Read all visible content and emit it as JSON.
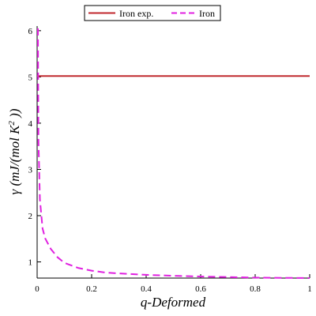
{
  "chart_data": {
    "type": "line",
    "xlabel": "q-Deformed",
    "ylabel": {
      "prefix": "γ (mJ/(mol K",
      "superscript": "2",
      "suffix": " ))"
    },
    "xlim": [
      0,
      1
    ],
    "ylim": [
      0.65,
      6.1
    ],
    "x_ticks": [
      0,
      0.2,
      0.4,
      0.6,
      0.8,
      1
    ],
    "x_tick_labels": [
      "0",
      "0.2",
      "0.4",
      "0.6",
      "0.8",
      "1"
    ],
    "y_ticks": [
      1,
      2,
      3,
      4,
      5,
      6
    ],
    "y_tick_labels": [
      "1",
      "2",
      "3",
      "4",
      "5",
      "6"
    ],
    "grid": false,
    "legend_position": "top-center",
    "series": [
      {
        "name": "Iron exp.",
        "color": "#c0282d",
        "dash": "solid",
        "x": [
          0,
          1
        ],
        "y": [
          5.02,
          5.02
        ]
      },
      {
        "name": "Iron",
        "color": "#e020e0",
        "dash": "dashed",
        "x": [
          0.003,
          0.005,
          0.01,
          0.02,
          0.03,
          0.05,
          0.075,
          0.1,
          0.15,
          0.2,
          0.25,
          0.3,
          0.4,
          0.5,
          0.6,
          0.7,
          0.8,
          0.9,
          1.0
        ],
        "y": [
          6.05,
          3.6,
          2.35,
          1.72,
          1.5,
          1.28,
          1.1,
          0.98,
          0.87,
          0.81,
          0.77,
          0.75,
          0.72,
          0.7,
          0.685,
          0.672,
          0.66,
          0.655,
          0.65
        ]
      }
    ]
  }
}
